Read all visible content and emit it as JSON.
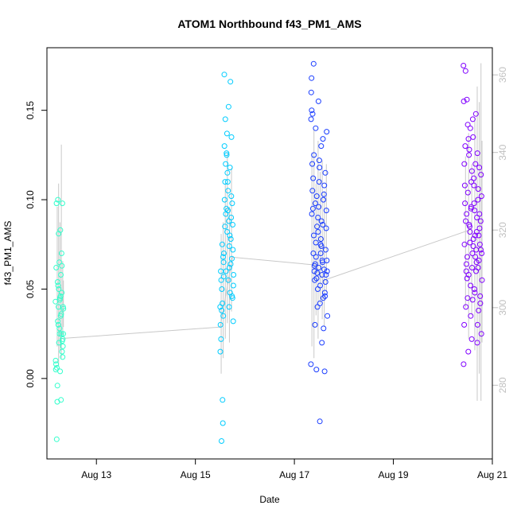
{
  "chart_data": {
    "type": "scatter",
    "title": "ATOM1 Northbound f43_PM1_AMS",
    "xlabel": "Date",
    "ylabel": "f43_PM1_AMS",
    "xlim": [
      "2014-08-12T00:00",
      "2014-08-21T00:00"
    ],
    "ylim": [
      -0.045,
      0.185
    ],
    "y2lim": [
      261,
      367
    ],
    "x_ticks": [
      {
        "value": "2014-08-13T00:00",
        "label": "Aug 13"
      },
      {
        "value": "2014-08-15T00:00",
        "label": "Aug 15"
      },
      {
        "value": "2014-08-17T00:00",
        "label": "Aug 17"
      },
      {
        "value": "2014-08-19T00:00",
        "label": "Aug 19"
      },
      {
        "value": "2014-08-21T00:00",
        "label": "Aug 21"
      }
    ],
    "y_ticks": [
      0.0,
      0.05,
      0.1,
      0.15
    ],
    "y_tick_labels": [
      "0.00",
      "0.05",
      "0.10",
      "0.15"
    ],
    "y2_ticks": [
      280,
      300,
      320,
      340,
      360
    ],
    "y2_tick_labels": [
      "280",
      "300",
      "320",
      "340",
      "360"
    ],
    "grid": false,
    "legend": "none",
    "series": [
      {
        "color": "#33ffcc",
        "x": [
          "2014-08-12T04:10",
          "2014-08-12T04:20",
          "2014-08-12T04:30",
          "2014-08-12T04:40",
          "2014-08-12T04:50",
          "2014-08-12T05:00",
          "2014-08-12T05:10",
          "2014-08-12T05:20",
          "2014-08-12T05:30",
          "2014-08-12T05:40",
          "2014-08-12T05:50",
          "2014-08-12T06:00",
          "2014-08-12T06:10",
          "2014-08-12T06:20",
          "2014-08-12T06:30",
          "2014-08-12T06:40",
          "2014-08-12T06:50",
          "2014-08-12T07:00",
          "2014-08-12T07:10",
          "2014-08-12T07:20",
          "2014-08-12T07:30",
          "2014-08-12T07:40",
          "2014-08-12T07:50",
          "2014-08-12T08:00",
          "2014-08-12T04:15",
          "2014-08-12T04:45",
          "2014-08-12T05:15",
          "2014-08-12T05:45",
          "2014-08-12T06:15",
          "2014-08-12T06:45",
          "2014-08-12T07:15",
          "2014-08-12T07:45",
          "2014-08-12T04:25",
          "2014-08-12T05:05",
          "2014-08-12T05:35",
          "2014-08-12T06:05",
          "2014-08-12T06:35",
          "2014-08-12T07:05",
          "2014-08-12T07:35",
          "2014-08-12T05:25",
          "2014-08-12T06:25",
          "2014-08-12T06:55",
          "2014-08-12T07:25",
          "2014-08-12T07:55"
        ],
        "y": [
          0.043,
          0.005,
          0.062,
          0.098,
          0.006,
          -0.013,
          0.054,
          0.1,
          0.03,
          0.081,
          0.02,
          0.065,
          0.025,
          0.045,
          0.083,
          0.035,
          -0.012,
          0.025,
          0.048,
          0.015,
          0.098,
          0.022,
          0.04,
          0.039,
          0.01,
          -0.034,
          0.032,
          0.05,
          0.044,
          0.058,
          0.063,
          0.018,
          0.008,
          -0.004,
          0.04,
          0.028,
          0.046,
          0.07,
          0.012,
          0.052,
          0.004,
          0.036,
          0.021,
          0.025
        ]
      },
      {
        "color": "#00ccff",
        "x": [
          "2014-08-15T12:00",
          "2014-08-15T12:20",
          "2014-08-15T12:40",
          "2014-08-15T13:00",
          "2014-08-15T13:20",
          "2014-08-15T13:40",
          "2014-08-15T14:00",
          "2014-08-15T14:20",
          "2014-08-15T14:40",
          "2014-08-15T15:00",
          "2014-08-15T15:20",
          "2014-08-15T15:40",
          "2014-08-15T16:00",
          "2014-08-15T16:20",
          "2014-08-15T16:40",
          "2014-08-15T17:00",
          "2014-08-15T17:20",
          "2014-08-15T17:40",
          "2014-08-15T18:00",
          "2014-08-15T18:20",
          "2014-08-15T12:10",
          "2014-08-15T12:30",
          "2014-08-15T12:50",
          "2014-08-15T13:10",
          "2014-08-15T13:30",
          "2014-08-15T13:50",
          "2014-08-15T14:10",
          "2014-08-15T14:30",
          "2014-08-15T14:50",
          "2014-08-15T15:10",
          "2014-08-15T15:30",
          "2014-08-15T15:50",
          "2014-08-15T16:10",
          "2014-08-15T16:30",
          "2014-08-15T16:50",
          "2014-08-15T17:10",
          "2014-08-15T17:30",
          "2014-08-15T17:50",
          "2014-08-15T18:10",
          "2014-08-15T18:30",
          "2014-08-15T12:05",
          "2014-08-15T12:45",
          "2014-08-15T13:25",
          "2014-08-15T14:05",
          "2014-08-15T14:45",
          "2014-08-15T15:25",
          "2014-08-15T16:05",
          "2014-08-15T16:45",
          "2014-08-15T17:25",
          "2014-08-15T18:05",
          "2014-08-15T12:25",
          "2014-08-15T13:05",
          "2014-08-15T13:45",
          "2014-08-15T14:25",
          "2014-08-15T15:05",
          "2014-08-15T15:45",
          "2014-08-15T16:25",
          "2014-08-15T17:05",
          "2014-08-15T17:45",
          "2014-08-15T18:25"
        ],
        "y": [
          0.04,
          0.06,
          -0.035,
          0.075,
          -0.025,
          0.065,
          0.17,
          0.085,
          0.12,
          0.095,
          0.137,
          0.11,
          0.055,
          0.04,
          0.08,
          0.166,
          0.09,
          0.067,
          0.045,
          0.032,
          0.03,
          0.055,
          0.05,
          -0.012,
          0.035,
          0.07,
          0.1,
          0.145,
          0.06,
          0.125,
          0.115,
          0.105,
          0.088,
          0.062,
          0.048,
          0.078,
          0.135,
          0.098,
          0.072,
          0.058,
          0.015,
          0.038,
          0.068,
          0.13,
          0.092,
          0.082,
          0.152,
          0.118,
          0.102,
          0.086,
          0.022,
          0.042,
          0.057,
          0.11,
          0.126,
          0.094,
          0.074,
          0.064,
          0.046,
          0.052
        ]
      },
      {
        "color": "#1a3dff",
        "x": [
          "2014-08-17T08:00",
          "2014-08-17T08:20",
          "2014-08-17T08:40",
          "2014-08-17T09:00",
          "2014-08-17T09:20",
          "2014-08-17T09:40",
          "2014-08-17T10:00",
          "2014-08-17T10:20",
          "2014-08-17T10:40",
          "2014-08-17T11:00",
          "2014-08-17T11:20",
          "2014-08-17T11:40",
          "2014-08-17T12:00",
          "2014-08-17T12:20",
          "2014-08-17T12:40",
          "2014-08-17T13:00",
          "2014-08-17T13:20",
          "2014-08-17T13:40",
          "2014-08-17T14:00",
          "2014-08-17T14:20",
          "2014-08-17T14:40",
          "2014-08-17T15:00",
          "2014-08-17T15:20",
          "2014-08-17T15:40",
          "2014-08-17T16:00",
          "2014-08-17T08:10",
          "2014-08-17T08:30",
          "2014-08-17T08:50",
          "2014-08-17T09:10",
          "2014-08-17T09:30",
          "2014-08-17T09:50",
          "2014-08-17T10:10",
          "2014-08-17T10:30",
          "2014-08-17T10:50",
          "2014-08-17T11:10",
          "2014-08-17T11:30",
          "2014-08-17T11:50",
          "2014-08-17T12:10",
          "2014-08-17T12:30",
          "2014-08-17T12:50",
          "2014-08-17T13:10",
          "2014-08-17T13:30",
          "2014-08-17T13:50",
          "2014-08-17T14:10",
          "2014-08-17T14:30",
          "2014-08-17T14:50",
          "2014-08-17T15:10",
          "2014-08-17T15:30",
          "2014-08-17T15:50",
          "2014-08-17T08:05",
          "2014-08-17T08:45",
          "2014-08-17T09:25",
          "2014-08-17T10:05",
          "2014-08-17T10:45",
          "2014-08-17T11:25",
          "2014-08-17T12:05",
          "2014-08-17T12:45",
          "2014-08-17T13:25",
          "2014-08-17T14:05",
          "2014-08-17T14:45",
          "2014-08-17T15:25",
          "2014-08-17T08:25",
          "2014-08-17T09:05",
          "2014-08-17T09:45",
          "2014-08-17T10:25",
          "2014-08-17T11:05",
          "2014-08-17T11:45",
          "2014-08-17T12:25",
          "2014-08-17T13:05",
          "2014-08-17T13:45",
          "2014-08-17T14:25",
          "2014-08-17T15:05",
          "2014-08-17T15:45"
        ],
        "y": [
          0.008,
          0.168,
          0.12,
          0.095,
          0.176,
          0.06,
          0.03,
          0.14,
          0.005,
          0.085,
          0.05,
          0.155,
          0.11,
          -0.024,
          0.075,
          0.13,
          0.02,
          0.065,
          0.045,
          0.103,
          0.004,
          0.115,
          0.058,
          0.138,
          0.035,
          0.16,
          0.092,
          0.148,
          0.07,
          0.125,
          0.055,
          0.098,
          0.068,
          0.102,
          0.04,
          0.082,
          0.062,
          0.118,
          0.052,
          0.078,
          0.088,
          0.066,
          0.134,
          0.028,
          0.108,
          0.046,
          0.072,
          0.094,
          0.06,
          0.145,
          0.105,
          0.08,
          0.064,
          0.056,
          0.09,
          0.122,
          0.07,
          0.058,
          0.1,
          0.048,
          0.084,
          0.15,
          0.112,
          0.063,
          0.076,
          0.059,
          0.096,
          0.042,
          0.074,
          0.086,
          0.061,
          0.054,
          0.066
        ]
      },
      {
        "color": "#8000ff",
        "x": [
          "2014-08-20T10:00",
          "2014-08-20T10:20",
          "2014-08-20T10:40",
          "2014-08-20T11:00",
          "2014-08-20T11:20",
          "2014-08-20T11:40",
          "2014-08-20T12:00",
          "2014-08-20T12:20",
          "2014-08-20T12:40",
          "2014-08-20T13:00",
          "2014-08-20T13:20",
          "2014-08-20T13:40",
          "2014-08-20T14:00",
          "2014-08-20T14:20",
          "2014-08-20T14:40",
          "2014-08-20T15:00",
          "2014-08-20T15:20",
          "2014-08-20T15:40",
          "2014-08-20T16:00",
          "2014-08-20T16:20",
          "2014-08-20T16:40",
          "2014-08-20T17:00",
          "2014-08-20T17:20",
          "2014-08-20T17:40",
          "2014-08-20T18:00",
          "2014-08-20T18:20",
          "2014-08-20T18:40",
          "2014-08-20T19:00",
          "2014-08-20T10:10",
          "2014-08-20T10:30",
          "2014-08-20T10:50",
          "2014-08-20T11:10",
          "2014-08-20T11:30",
          "2014-08-20T11:50",
          "2014-08-20T12:10",
          "2014-08-20T12:30",
          "2014-08-20T12:50",
          "2014-08-20T13:10",
          "2014-08-20T13:30",
          "2014-08-20T13:50",
          "2014-08-20T14:10",
          "2014-08-20T14:30",
          "2014-08-20T14:50",
          "2014-08-20T15:10",
          "2014-08-20T15:30",
          "2014-08-20T15:50",
          "2014-08-20T16:10",
          "2014-08-20T16:30",
          "2014-08-20T16:50",
          "2014-08-20T17:10",
          "2014-08-20T17:30",
          "2014-08-20T17:50",
          "2014-08-20T18:10",
          "2014-08-20T18:30",
          "2014-08-20T18:50",
          "2014-08-20T10:05",
          "2014-08-20T10:45",
          "2014-08-20T11:25",
          "2014-08-20T12:05",
          "2014-08-20T12:45",
          "2014-08-20T13:25",
          "2014-08-20T14:05",
          "2014-08-20T14:45",
          "2014-08-20T15:25",
          "2014-08-20T16:05",
          "2014-08-20T16:45",
          "2014-08-20T17:25",
          "2014-08-20T18:05",
          "2014-08-20T18:45",
          "2014-08-20T10:25",
          "2014-08-20T11:05",
          "2014-08-20T11:45",
          "2014-08-20T12:25",
          "2014-08-20T13:05",
          "2014-08-20T13:45",
          "2014-08-20T14:25",
          "2014-08-20T15:05",
          "2014-08-20T15:45",
          "2014-08-20T16:25",
          "2014-08-20T17:05",
          "2014-08-20T17:45",
          "2014-08-20T18:25"
        ],
        "y": [
          0.175,
          0.03,
          0.108,
          0.172,
          0.06,
          0.156,
          0.045,
          0.015,
          0.125,
          0.085,
          0.14,
          0.095,
          0.022,
          0.07,
          0.135,
          0.112,
          0.05,
          0.08,
          0.148,
          0.065,
          0.02,
          0.1,
          0.038,
          0.118,
          0.075,
          0.088,
          0.025,
          0.055,
          0.155,
          0.075,
          0.13,
          0.04,
          0.092,
          0.068,
          0.104,
          0.058,
          0.128,
          0.082,
          0.035,
          0.11,
          0.062,
          0.145,
          0.078,
          0.098,
          0.048,
          0.12,
          0.072,
          0.09,
          0.03,
          0.106,
          0.066,
          0.084,
          0.042,
          0.114,
          0.07,
          0.008,
          0.098,
          0.064,
          0.142,
          0.086,
          0.052,
          0.116,
          0.074,
          0.094,
          0.06,
          0.126,
          0.08,
          0.046,
          0.102,
          0.12,
          0.088,
          0.056,
          0.134,
          0.076,
          0.096,
          0.044,
          0.108,
          0.068,
          0.082,
          0.062,
          0.092,
          0.072
        ]
      }
    ],
    "line_series": {
      "axis": "right",
      "color": "#c8c8c8",
      "x": [
        "2014-08-12T06:00",
        "2014-08-15T12:00",
        "2014-08-15T18:00",
        "2014-08-17T10:00",
        "2014-08-17T14:00",
        "2014-08-20T13:00"
      ],
      "y": [
        292,
        295,
        313,
        311,
        307,
        320
      ]
    },
    "range_bars": {
      "axis": "right",
      "color": "#c8c8c8",
      "items": [
        {
          "x": "2014-08-12T05:00",
          "low": 290,
          "high": 326
        },
        {
          "x": "2014-08-12T05:40",
          "low": 285,
          "high": 332
        },
        {
          "x": "2014-08-12T06:20",
          "low": 289,
          "high": 322
        },
        {
          "x": "2014-08-12T07:00",
          "low": 287,
          "high": 342
        },
        {
          "x": "2014-08-12T07:40",
          "low": 293,
          "high": 312
        },
        {
          "x": "2014-08-12T08:00",
          "low": 295,
          "high": 307
        },
        {
          "x": "2014-08-15T12:30",
          "low": 283,
          "high": 319
        },
        {
          "x": "2014-08-15T13:30",
          "low": 287,
          "high": 322
        },
        {
          "x": "2014-08-15T14:30",
          "low": 292,
          "high": 332
        },
        {
          "x": "2014-08-15T15:30",
          "low": 296,
          "high": 340
        },
        {
          "x": "2014-08-15T16:30",
          "low": 291,
          "high": 326
        },
        {
          "x": "2014-08-15T17:30",
          "low": 299,
          "high": 336
        },
        {
          "x": "2014-08-17T08:30",
          "low": 290,
          "high": 340
        },
        {
          "x": "2014-08-17T09:30",
          "low": 287,
          "high": 346
        },
        {
          "x": "2014-08-17T10:30",
          "low": 298,
          "high": 332
        },
        {
          "x": "2014-08-17T11:30",
          "low": 292,
          "high": 343
        },
        {
          "x": "2014-08-17T12:30",
          "low": 301,
          "high": 335
        },
        {
          "x": "2014-08-17T13:30",
          "low": 297,
          "high": 338
        },
        {
          "x": "2014-08-17T14:30",
          "low": 295,
          "high": 330
        },
        {
          "x": "2014-08-17T15:30",
          "low": 304,
          "high": 337
        },
        {
          "x": "2014-08-20T11:00",
          "low": 300,
          "high": 339
        },
        {
          "x": "2014-08-20T12:30",
          "low": 292,
          "high": 345
        },
        {
          "x": "2014-08-20T14:00",
          "low": 298,
          "high": 337
        },
        {
          "x": "2014-08-20T15:30",
          "low": 289,
          "high": 349
        },
        {
          "x": "2014-08-20T16:40",
          "low": 276,
          "high": 357
        },
        {
          "x": "2014-08-20T17:40",
          "low": 283,
          "high": 353
        },
        {
          "x": "2014-08-20T18:30",
          "low": 276,
          "high": 363
        },
        {
          "x": "2014-08-20T19:00",
          "low": 291,
          "high": 343
        }
      ]
    }
  }
}
